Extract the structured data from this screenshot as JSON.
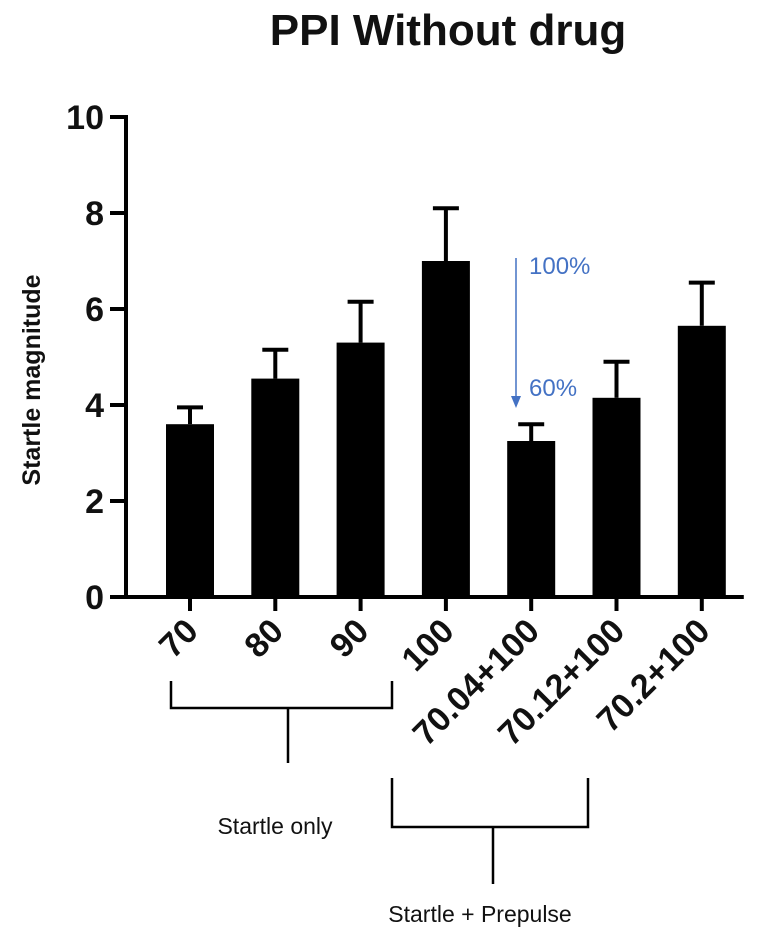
{
  "chart_data": {
    "type": "bar",
    "title": "PPI Without drug",
    "xlabel": "",
    "ylabel": "Startle magnitude",
    "ylim": [
      0,
      10
    ],
    "yticks": [
      0,
      2,
      4,
      6,
      8,
      10
    ],
    "categories": [
      "70",
      "80",
      "90",
      "100",
      "70.04+100",
      "70.12+100",
      "70.2+100"
    ],
    "values": [
      3.6,
      4.55,
      5.3,
      7.0,
      3.25,
      4.15,
      5.65
    ],
    "errors": [
      0.35,
      0.6,
      0.85,
      1.1,
      0.35,
      0.75,
      0.9
    ],
    "bar_color": "#000000",
    "annotations": {
      "top_label": "100%",
      "bottom_label": "60%",
      "color": "#4472C4"
    },
    "groups": [
      {
        "label": "Startle only",
        "start": 0,
        "end": 3
      },
      {
        "label": "Startle + Prepulse",
        "start": 4,
        "end": 6
      }
    ]
  }
}
